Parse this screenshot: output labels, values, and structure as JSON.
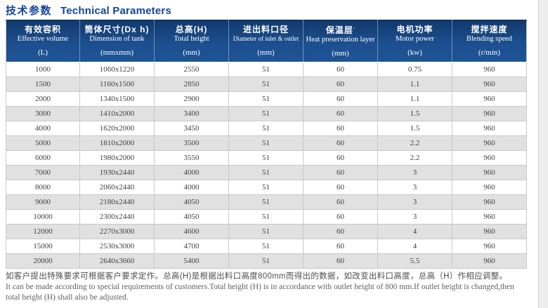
{
  "title": {
    "cn": "技术参数",
    "en": "Technical Parameters"
  },
  "colors": {
    "title_blue": "#1446a0",
    "header_bg": "#1c4f8f",
    "row_alt_gray": "#e1e1e1",
    "border_gray": "#c9c9c9",
    "edge_strip": "#ededed"
  },
  "table": {
    "columns": [
      {
        "cn": "有效容积",
        "en": "Effective volume",
        "unit": "(L)",
        "mark": ""
      },
      {
        "cn": "筒体尺寸(Dx h)",
        "en": "Dimension of tank",
        "unit": "(mmxmm)",
        "mark": ""
      },
      {
        "cn": "总高(H)",
        "en": "Total height",
        "unit": "(mm)",
        "mark": ""
      },
      {
        "cn": "进出料口径",
        "en": "Diameter of inlet & outlet",
        "unit": "(mm)",
        "mark": ""
      },
      {
        "cn": "保温层",
        "en": "Heat preservation layer",
        "unit": "(mm)",
        "mark": "▫"
      },
      {
        "cn": "电机功率",
        "en": "Motor power",
        "unit": "(kw)",
        "mark": ""
      },
      {
        "cn": "搅拌速度",
        "en": "Blending speed",
        "unit": "(r/min)",
        "mark": ""
      }
    ],
    "rows": [
      [
        "1000",
        "1060x1220",
        "2550",
        "51",
        "60",
        "0.75",
        "960"
      ],
      [
        "1500",
        "1160x1500",
        "2850",
        "51",
        "60",
        "1.1",
        "960"
      ],
      [
        "2000",
        "1340x1500",
        "2900",
        "51",
        "60",
        "1.1",
        "960"
      ],
      [
        "3000",
        "1410x2000",
        "3400",
        "51",
        "60",
        "1.5",
        "960"
      ],
      [
        "4000",
        "1620x2000",
        "3450",
        "51",
        "60",
        "1.5",
        "960"
      ],
      [
        "5000",
        "1810x2000",
        "3500",
        "51",
        "60",
        "2.2",
        "960"
      ],
      [
        "6000",
        "1980x2000",
        "3550",
        "51",
        "60",
        "2.2",
        "960"
      ],
      [
        "7000",
        "1930x2440",
        "4000",
        "51",
        "60",
        "3",
        "960"
      ],
      [
        "8000",
        "2060x2440",
        "4000",
        "51",
        "60",
        "3",
        "960"
      ],
      [
        "9000",
        "2180x2440",
        "4050",
        "51",
        "60",
        "3",
        "960"
      ],
      [
        "10000",
        "2300x2440",
        "4050",
        "51",
        "60",
        "3",
        "960"
      ],
      [
        "12000",
        "2270x3000",
        "4600",
        "51",
        "60",
        "4",
        "960"
      ],
      [
        "15000",
        "2530x3000",
        "4700",
        "51",
        "60",
        "4",
        "960"
      ],
      [
        "20000",
        "2640x3660",
        "5400",
        "51",
        "60",
        "5.5",
        "960"
      ]
    ]
  },
  "footnote": {
    "cn": "如客户提出特殊要求可根据客户要求定作。总高(H)是根据出料口高度800mm而得出的数据，如改变出料口高度，总高（H）作相应调整。",
    "en_line1": "It can be made according to special requirements of customers.Total height (H) is in accordance with outlet height of 800 mm.If outlet height is changed,then",
    "en_line2": "total height (H) shall also be adjusted."
  }
}
